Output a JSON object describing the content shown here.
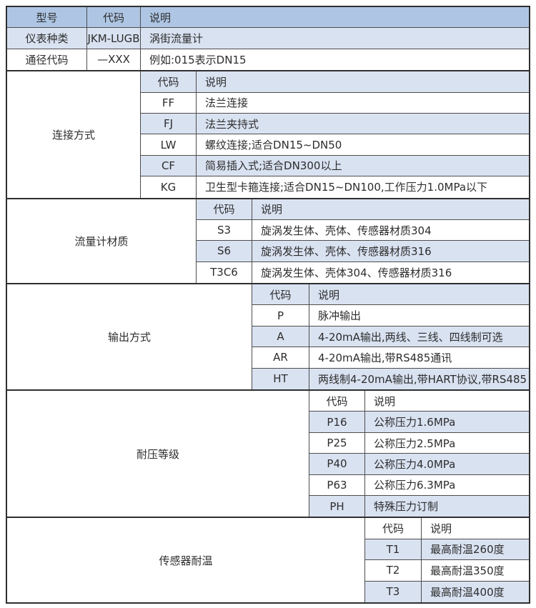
{
  "colors": {
    "header_bg": "#aec6e4",
    "alt_row_bg": "#d9e2f1",
    "row_bg": "#ffffff",
    "border": "#2f2f2f",
    "text": "#2d2d2d"
  },
  "table": {
    "header": {
      "model": "型号",
      "code": "代码",
      "desc": "说明"
    },
    "rows": [
      {
        "label": "仪表种类",
        "code": "JKM-LUGB",
        "desc": "涡街流量计"
      },
      {
        "label": "通径代码",
        "code": "—XXX",
        "desc": "例如:015表示DN15"
      }
    ],
    "sections": [
      {
        "label": "连接方式",
        "header": {
          "code": "代码",
          "desc": "说明"
        },
        "rows": [
          {
            "code": "FF",
            "desc": "法兰连接"
          },
          {
            "code": "FJ",
            "desc": "法兰夹持式"
          },
          {
            "code": "LW",
            "desc": "螺纹连接;适合DN15~DN50"
          },
          {
            "code": "CF",
            "desc": "简易插入式;适合DN300以上"
          },
          {
            "code": "KG",
            "desc": "卫生型卡箍连接;适合DN15~DN100,工作压力1.0MPa以下"
          }
        ]
      },
      {
        "label": "流量计材质",
        "header": {
          "code": "代码",
          "desc": "说明"
        },
        "rows": [
          {
            "code": "S3",
            "desc": "旋涡发生体、壳体、传感器材质304"
          },
          {
            "code": "S6",
            "desc": "旋涡发生体、壳体、传感器材质316"
          },
          {
            "code": "T3C6",
            "desc": "旋涡发生体、壳体304、传感器材质316"
          }
        ]
      },
      {
        "label": "输出方式",
        "header": {
          "code": "代码",
          "desc": "说明"
        },
        "rows": [
          {
            "code": "P",
            "desc": "脉冲输出"
          },
          {
            "code": "A",
            "desc": "4-20mA输出,两线、三线、四线制可选"
          },
          {
            "code": "AR",
            "desc": "4-20mA输出,带RS485通讯"
          },
          {
            "code": "HT",
            "desc": "两线制4-20mA输出,带HART协议,带RS485"
          }
        ]
      },
      {
        "label": "耐压等级",
        "header": {
          "code": "代码",
          "desc": "说明"
        },
        "rows": [
          {
            "code": "P16",
            "desc": "公称压力1.6MPa"
          },
          {
            "code": "P25",
            "desc": "公称压力2.5MPa"
          },
          {
            "code": "P40",
            "desc": "公称压力4.0MPa"
          },
          {
            "code": "P63",
            "desc": "公称压力6.3MPa"
          },
          {
            "code": "PH",
            "desc": "特殊压力订制"
          }
        ]
      },
      {
        "label": "传感器耐温",
        "header": {
          "code": "代码",
          "desc": "说明"
        },
        "rows": [
          {
            "code": "T1",
            "desc": "最高耐温260度"
          },
          {
            "code": "T2",
            "desc": "最高耐温350度"
          },
          {
            "code": "T3",
            "desc": "最高耐温400度"
          }
        ]
      }
    ]
  }
}
